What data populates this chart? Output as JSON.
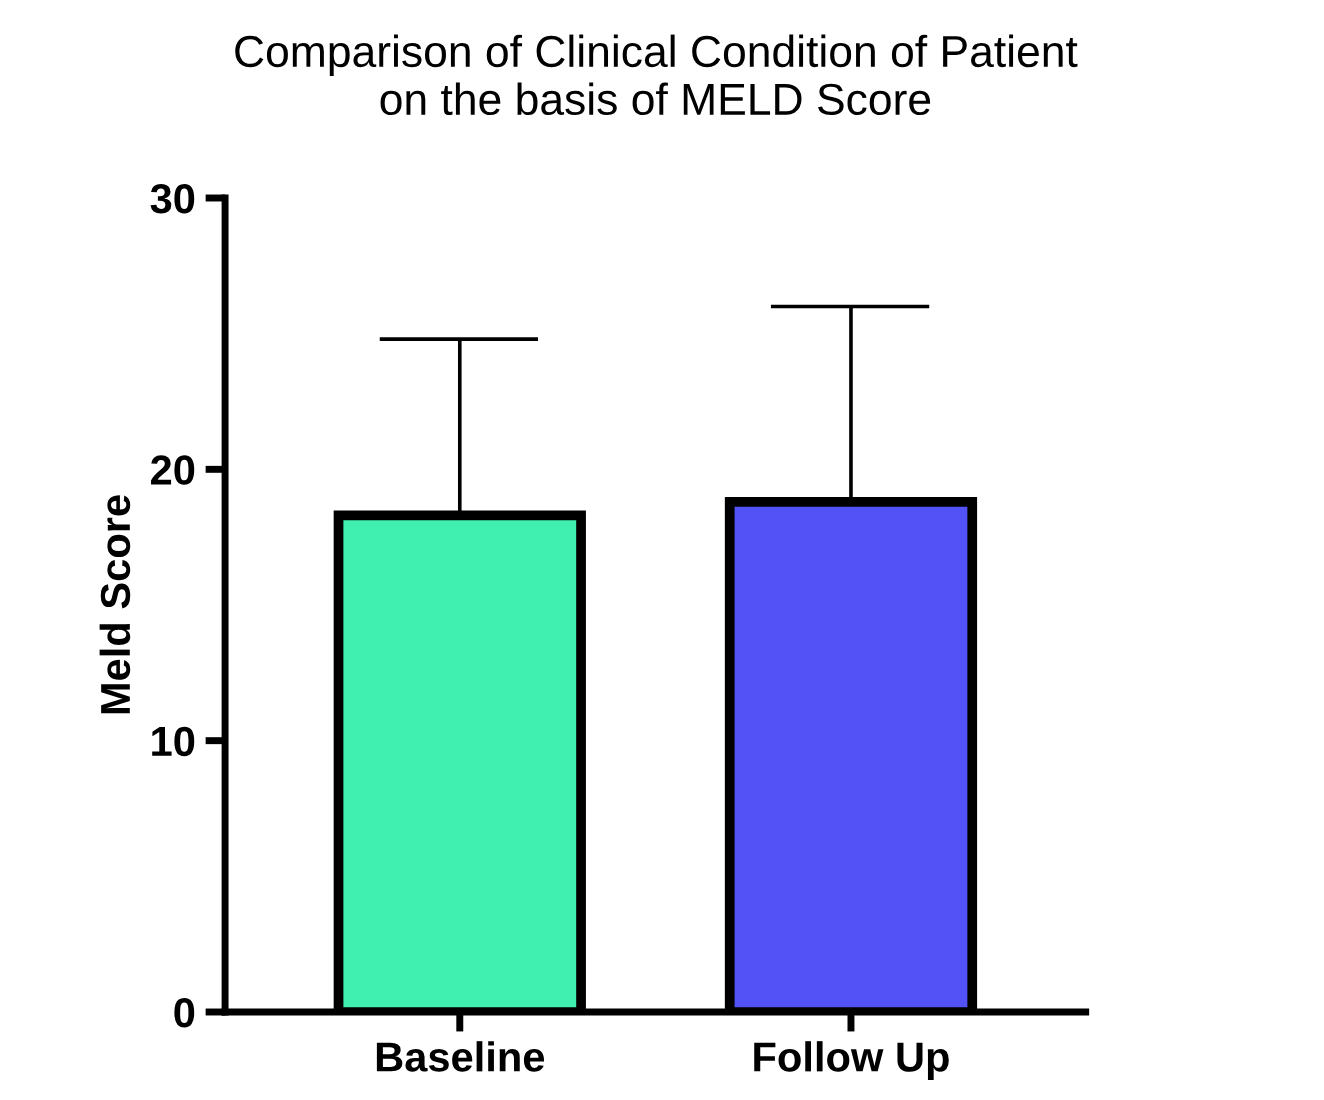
{
  "chart_data": {
    "type": "bar",
    "title": "Comparison of Clinical Condition of Patient\non the basis of MELD Score",
    "ylabel": "Meld Score",
    "categories": [
      "Baseline",
      "Follow Up"
    ],
    "values": [
      18.3,
      18.8
    ],
    "colors": [
      "#40f0b0",
      "#5252f7"
    ],
    "errors": [
      [
        18.3,
        24.8
      ],
      [
        18.8,
        26.0
      ]
    ],
    "ylim": [
      0,
      30
    ],
    "yticks": [
      0,
      10,
      20,
      30
    ],
    "grid": false
  }
}
